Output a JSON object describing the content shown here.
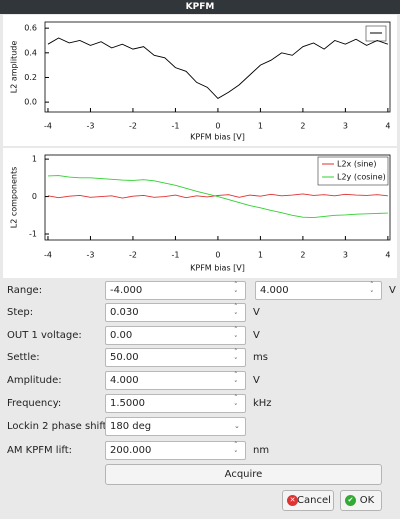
{
  "window": {
    "title": "KPFM"
  },
  "chart_data": [
    {
      "type": "line",
      "xlabel": "KPFM bias [V]",
      "ylabel": "L2 amplitude",
      "x": [
        -4,
        -3.75,
        -3.5,
        -3.25,
        -3,
        -2.75,
        -2.5,
        -2.25,
        -2,
        -1.75,
        -1.5,
        -1.25,
        -1,
        -0.75,
        -0.5,
        -0.25,
        0,
        0.25,
        0.5,
        0.75,
        1,
        1.25,
        1.5,
        1.75,
        2,
        2.25,
        2.5,
        2.75,
        3,
        3.25,
        3.5,
        3.75,
        4
      ],
      "values": [
        0.47,
        0.52,
        0.48,
        0.5,
        0.46,
        0.49,
        0.44,
        0.47,
        0.43,
        0.45,
        0.38,
        0.36,
        0.28,
        0.25,
        0.16,
        0.12,
        0.03,
        0.08,
        0.14,
        0.22,
        0.3,
        0.34,
        0.4,
        0.38,
        0.45,
        0.48,
        0.43,
        0.5,
        0.47,
        0.51,
        0.46,
        0.5,
        0.47
      ],
      "color": "#000000",
      "xlim": [
        -4.07,
        4.05
      ],
      "ylim": [
        -0.08,
        0.65
      ],
      "xticks": [
        -4,
        -3,
        -2,
        -1,
        0,
        1,
        2,
        3,
        4
      ],
      "yticks": [
        {
          "value": 0,
          "label": "0.0"
        },
        0.2,
        0.4,
        0.6
      ]
    },
    {
      "type": "line",
      "xlabel": "KPFM bias [V]",
      "ylabel": "L2 components",
      "x": [
        -4,
        -3.75,
        -3.5,
        -3.25,
        -3,
        -2.75,
        -2.5,
        -2.25,
        -2,
        -1.75,
        -1.5,
        -1.25,
        -1,
        -0.75,
        -0.5,
        -0.25,
        0,
        0.25,
        0.5,
        0.75,
        1,
        1.25,
        1.5,
        1.75,
        2,
        2.25,
        2.5,
        2.75,
        3,
        3.25,
        3.5,
        3.75,
        4
      ],
      "series": [
        {
          "name": "L2x (sine)",
          "color": "#e03030",
          "values": [
            0.02,
            -0.03,
            0.01,
            0.03,
            -0.02,
            0,
            0.02,
            -0.04,
            0.01,
            0.03,
            -0.02,
            0,
            0.04,
            -0.03,
            0.02,
            -0.01,
            0.03,
            0.05,
            -0.02,
            0.04,
            0.01,
            0.06,
            0.02,
            0.04,
            0.07,
            0.03,
            0.05,
            0.02,
            0.06,
            0.04,
            0.03,
            0.05,
            0.02
          ]
        },
        {
          "name": "L2y (cosine)",
          "color": "#30d030",
          "values": [
            0.55,
            0.56,
            0.52,
            0.5,
            0.5,
            0.48,
            0.46,
            0.44,
            0.43,
            0.45,
            0.42,
            0.36,
            0.3,
            0.22,
            0.14,
            0.07,
            0,
            -0.08,
            -0.16,
            -0.24,
            -0.3,
            -0.37,
            -0.43,
            -0.5,
            -0.55,
            -0.56,
            -0.53,
            -0.5,
            -0.49,
            -0.47,
            -0.46,
            -0.45,
            -0.44
          ]
        }
      ],
      "xlim": [
        -4.07,
        4.05
      ],
      "ylim": [
        -1.16,
        1.11
      ],
      "xticks": [
        -4,
        -3,
        -2,
        -1,
        0,
        1,
        2,
        3,
        4
      ],
      "yticks": [
        -1,
        0,
        1
      ]
    }
  ],
  "form": {
    "rows": [
      {
        "label": "Range:",
        "fields": [
          "-4.000",
          "4.000"
        ],
        "unit": "V"
      },
      {
        "label": "Step:",
        "fields": [
          "0.030"
        ],
        "unit": "V"
      },
      {
        "label": "OUT 1 voltage:",
        "fields": [
          "0.00"
        ],
        "unit": "V"
      },
      {
        "label": "Settle:",
        "fields": [
          "50.00"
        ],
        "unit": "ms"
      },
      {
        "label": "Amplitude:",
        "fields": [
          "4.000"
        ],
        "unit": "V"
      },
      {
        "label": "Frequency:",
        "fields": [
          "1.5000"
        ],
        "unit": "kHz"
      },
      {
        "label": "Lockin 2 phase shift:",
        "fields": [
          "180 deg"
        ],
        "dropdown": true
      },
      {
        "label": "AM KPFM lift:",
        "fields": [
          "200.000"
        ],
        "unit": "nm"
      }
    ],
    "acquire": "Acquire",
    "cancel": "Cancel",
    "ok": "OK"
  }
}
